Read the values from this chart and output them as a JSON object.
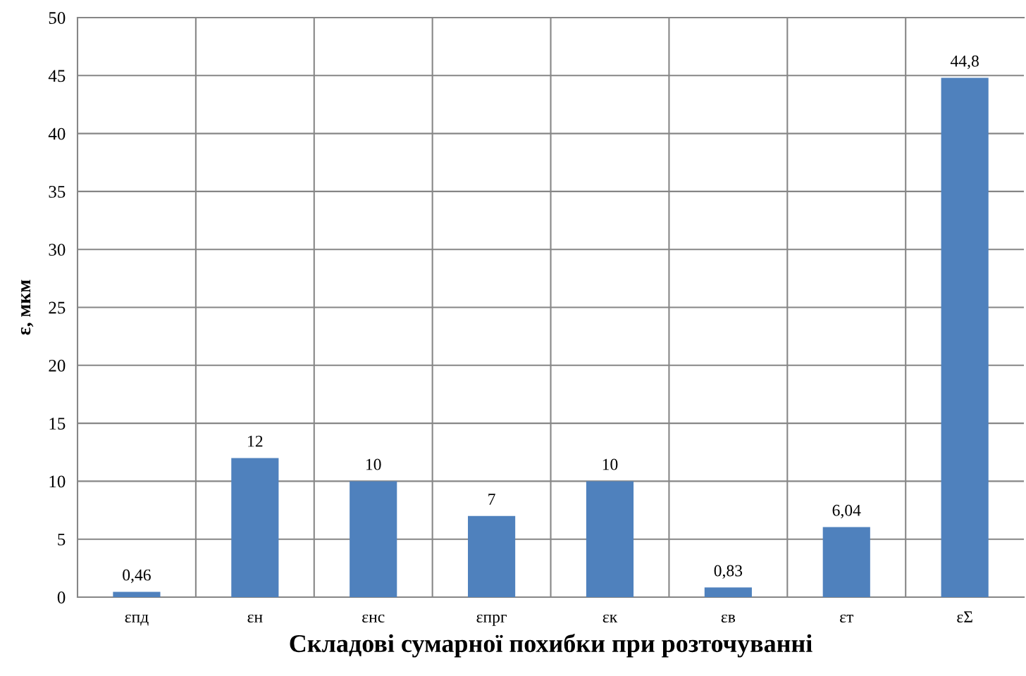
{
  "chart_data": {
    "type": "bar",
    "xlabel": "Складові сумарної похибки при розточуванні",
    "ylabel": "ε, мкм",
    "categories": [
      "εпд",
      "εн",
      "εнс",
      "εпрг",
      "εк",
      "εв",
      "εт",
      "εΣ"
    ],
    "values": [
      0.46,
      12,
      10,
      7,
      10,
      0.83,
      6.04,
      44.8
    ],
    "value_labels": [
      "0,46",
      "12",
      "10",
      "7",
      "10",
      "0,83",
      "6,04",
      "44,8"
    ],
    "color": "#4f81bd",
    "ylim": [
      0,
      50
    ],
    "yticks": [
      0,
      5,
      10,
      15,
      20,
      25,
      30,
      35,
      40,
      45,
      50
    ],
    "grid": true
  }
}
